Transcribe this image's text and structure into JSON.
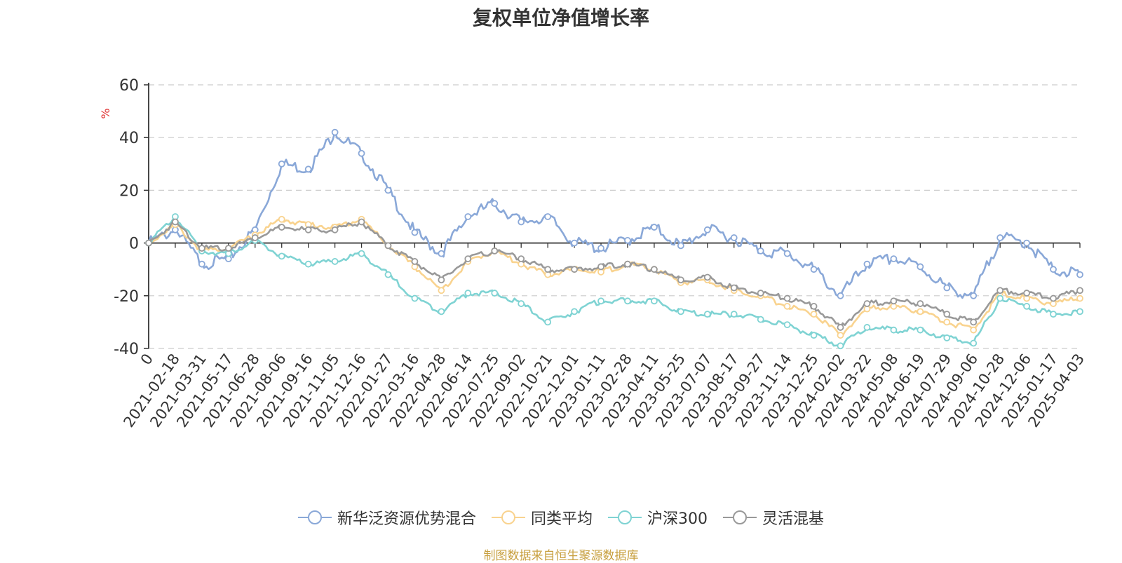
{
  "chart_data": {
    "type": "line",
    "title": "复权单位净值增长率",
    "ylabel": "%",
    "ylim": [
      -40,
      60
    ],
    "yticks": [
      -40,
      -20,
      0,
      20,
      40,
      60
    ],
    "grid": true,
    "legend_position": "bottom",
    "x_labels": [
      "0",
      "2021-02-18",
      "2021-03-31",
      "2021-05-17",
      "2021-06-28",
      "2021-08-06",
      "2021-09-16",
      "2021-11-05",
      "2021-12-16",
      "2022-01-27",
      "2022-03-16",
      "2022-04-28",
      "2022-06-14",
      "2022-07-25",
      "2022-09-02",
      "2022-10-21",
      "2022-12-01",
      "2023-01-11",
      "2023-02-28",
      "2023-04-11",
      "2023-05-25",
      "2023-07-07",
      "2023-08-17",
      "2023-09-27",
      "2023-11-14",
      "2023-12-25",
      "2024-02-02",
      "2024-03-22",
      "2024-05-08",
      "2024-06-19",
      "2024-07-29",
      "2024-09-06",
      "2024-10-28",
      "2024-12-06",
      "2025-01-17",
      "2025-04-03"
    ],
    "series": [
      {
        "name": "新华泛资源优势混合",
        "color": "#8aa8d8",
        "values": [
          0,
          5,
          -8,
          -6,
          5,
          30,
          28,
          42,
          34,
          20,
          4,
          -4,
          10,
          15,
          8,
          10,
          0,
          -2,
          1,
          6,
          -1,
          5,
          2,
          -3,
          -4,
          -10,
          -20,
          -8,
          -6,
          -9,
          -17,
          -20,
          2,
          0,
          -10,
          -12
        ]
      },
      {
        "name": "同类平均",
        "color": "#f9d38f",
        "values": [
          0,
          7,
          -3,
          -2,
          3,
          9,
          7,
          6,
          9,
          -1,
          -9,
          -18,
          -7,
          -3,
          -8,
          -12,
          -10,
          -11,
          -8,
          -10,
          -15,
          -14,
          -18,
          -20,
          -24,
          -27,
          -35,
          -25,
          -24,
          -26,
          -30,
          -33,
          -19,
          -21,
          -23,
          -21
        ]
      },
      {
        "name": "沪深300",
        "color": "#7fd3d3",
        "values": [
          0,
          10,
          -3,
          -4,
          1,
          -5,
          -8,
          -7,
          -4,
          -12,
          -21,
          -26,
          -19,
          -19,
          -23,
          -30,
          -26,
          -22,
          -22,
          -22,
          -26,
          -27,
          -27,
          -29,
          -31,
          -35,
          -39,
          -32,
          -33,
          -33,
          -36,
          -38,
          -21,
          -24,
          -27,
          -26
        ]
      },
      {
        "name": "灵活混基",
        "color": "#999999",
        "values": [
          0,
          8,
          -2,
          -2,
          2,
          6,
          5,
          5,
          8,
          -1,
          -7,
          -14,
          -6,
          -3,
          -6,
          -10,
          -10,
          -9,
          -8,
          -10,
          -14,
          -13,
          -17,
          -19,
          -21,
          -24,
          -32,
          -23,
          -22,
          -23,
          -27,
          -30,
          -18,
          -19,
          -21,
          -18
        ]
      }
    ]
  },
  "legend": [
    "新华泛资源优势混合",
    "同类平均",
    "沪深300",
    "灵活混基"
  ],
  "source": "制图数据来自恒生聚源数据库"
}
